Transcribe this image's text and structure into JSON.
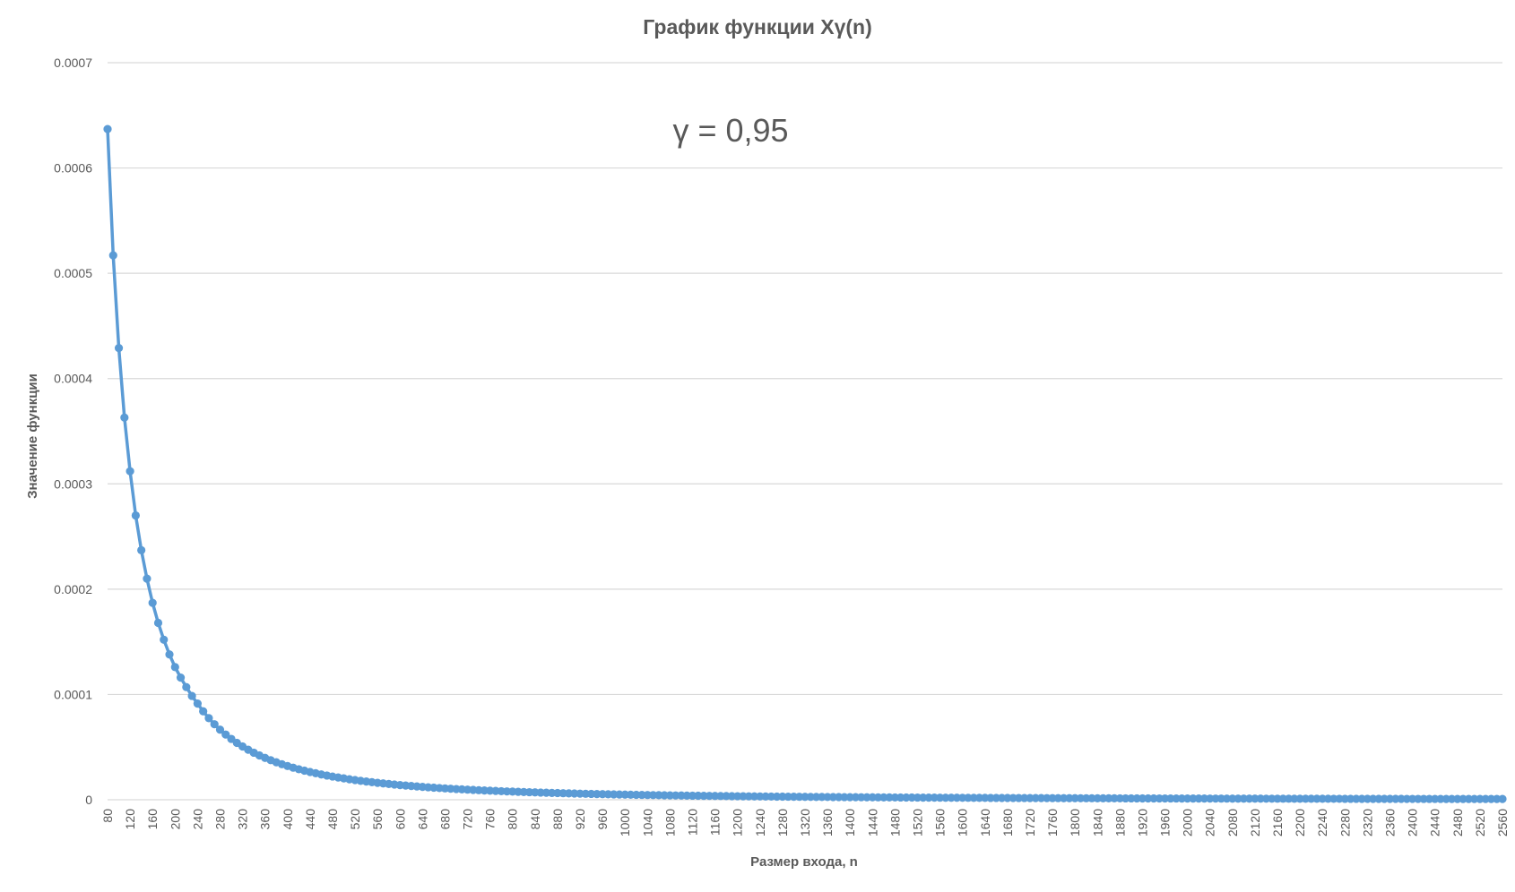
{
  "chart_data": {
    "type": "line",
    "title": "График функции Xγ(n)",
    "xlabel": "Размер входа, n",
    "ylabel": "Значение функции",
    "annotation": "γ = 0,95",
    "x_start": 80,
    "x_end": 2560,
    "x_step": 10,
    "x_tick_step": 40,
    "ylim": [
      0,
      0.0007
    ],
    "y_ticks": [
      "0",
      "0.0001",
      "0.0002",
      "0.0003",
      "0.0004",
      "0.0005",
      "0.0006",
      "0.0007"
    ],
    "grid": true,
    "legend": "none",
    "line_color": "#5b9bd5",
    "grid_color": "#d9d9d9",
    "series": [
      {
        "values": [
          0.000637,
          0.000517,
          0.000429,
          0.000363,
          0.000312,
          0.00027,
          0.000237,
          0.00021,
          0.000187,
          0.000168,
          0.000152,
          0.000138,
          0.000126,
          0.000116,
          0.000107,
          9.86e-05,
          9.13e-05
        ]
      }
    ]
  }
}
